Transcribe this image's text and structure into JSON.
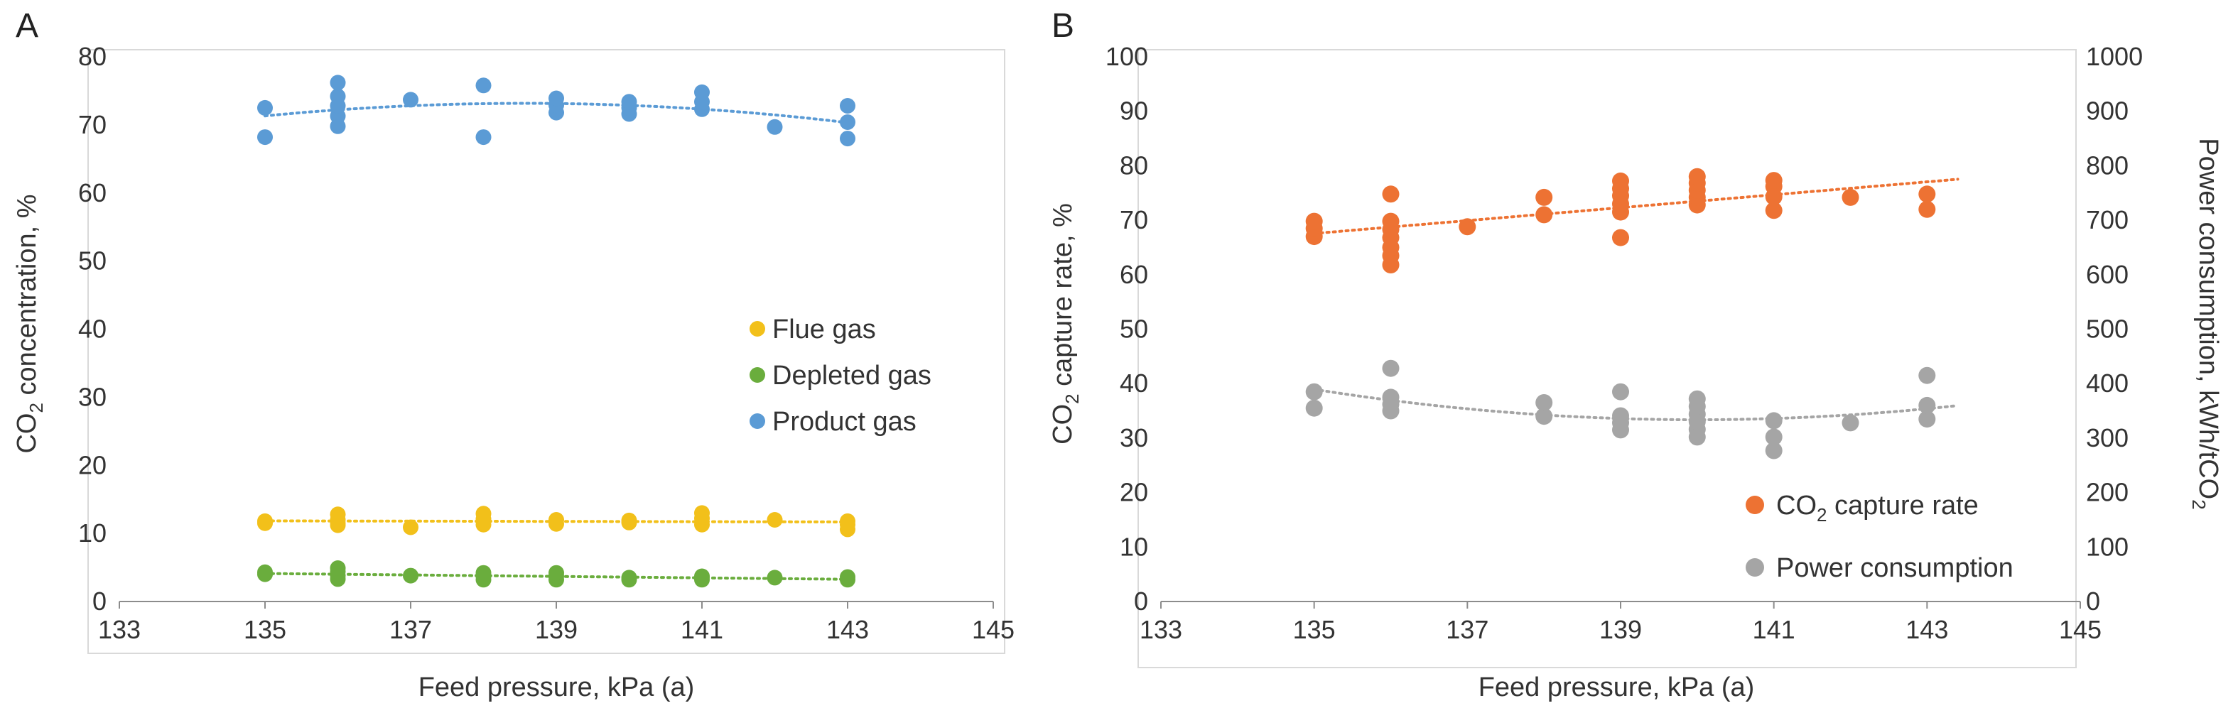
{
  "chart_data": [
    {
      "type": "scatter",
      "panel_label": "A",
      "xlabel": "Feed pressure, kPa (a)",
      "ylabel": "CO2 concentration, %",
      "xlim": [
        133,
        145
      ],
      "ylim": [
        0,
        80
      ],
      "xticks": [
        "133",
        "135",
        "137",
        "139",
        "141",
        "143",
        "145"
      ],
      "yticks": [
        "0",
        "10",
        "20",
        "30",
        "40",
        "50",
        "60",
        "70",
        "80"
      ],
      "legend_position": "center-right",
      "series": [
        {
          "name": "Flue gas",
          "color": "#f2c01a",
          "trend": "linear",
          "points": [
            [
              135,
              11.5
            ],
            [
              135,
              11.8
            ],
            [
              136,
              11.2
            ],
            [
              136,
              12.0
            ],
            [
              136,
              12.8
            ],
            [
              136,
              11.5
            ],
            [
              137,
              10.9
            ],
            [
              138,
              11.3
            ],
            [
              138,
              12.1
            ],
            [
              138,
              12.9
            ],
            [
              139,
              11.4
            ],
            [
              139,
              12.0
            ],
            [
              140,
              11.6
            ],
            [
              140,
              11.9
            ],
            [
              141,
              11.3
            ],
            [
              141,
              12.2
            ],
            [
              141,
              13.0
            ],
            [
              142,
              12.0
            ],
            [
              143,
              10.6
            ],
            [
              143,
              11.3
            ],
            [
              143,
              11.8
            ]
          ]
        },
        {
          "name": "Depleted gas",
          "color": "#6aad3d",
          "trend": "linear",
          "points": [
            [
              135,
              4.0
            ],
            [
              135,
              4.3
            ],
            [
              136,
              3.3
            ],
            [
              136,
              3.8
            ],
            [
              136,
              4.4
            ],
            [
              136,
              4.9
            ],
            [
              137,
              3.8
            ],
            [
              138,
              3.2
            ],
            [
              138,
              3.7
            ],
            [
              138,
              4.2
            ],
            [
              139,
              3.2
            ],
            [
              139,
              3.7
            ],
            [
              139,
              4.2
            ],
            [
              140,
              3.2
            ],
            [
              140,
              3.5
            ],
            [
              141,
              3.2
            ],
            [
              141,
              3.7
            ],
            [
              142,
              3.5
            ],
            [
              143,
              3.2
            ],
            [
              143,
              3.6
            ]
          ]
        },
        {
          "name": "Product gas",
          "color": "#5b9bd5",
          "trend": "polynomial",
          "points": [
            [
              135,
              68.2
            ],
            [
              135,
              72.5
            ],
            [
              136,
              69.8
            ],
            [
              136,
              71.3
            ],
            [
              136,
              72.8
            ],
            [
              136,
              74.2
            ],
            [
              136,
              76.2
            ],
            [
              137,
              73.7
            ],
            [
              138,
              68.2
            ],
            [
              138,
              75.8
            ],
            [
              139,
              71.8
            ],
            [
              139,
              72.9
            ],
            [
              139,
              73.9
            ],
            [
              140,
              71.6
            ],
            [
              140,
              72.5
            ],
            [
              140,
              73.4
            ],
            [
              141,
              72.3
            ],
            [
              141,
              73.4
            ],
            [
              141,
              74.8
            ],
            [
              142,
              69.7
            ],
            [
              143,
              68.0
            ],
            [
              143,
              70.4
            ],
            [
              143,
              72.8
            ]
          ]
        }
      ]
    },
    {
      "type": "scatter",
      "panel_label": "B",
      "xlabel": "Feed pressure, kPa (a)",
      "ylabel": "CO2 capture rate, %",
      "y2label": "Power consumption, kWh/tCO2",
      "xlim": [
        133,
        145
      ],
      "ylim": [
        0,
        100
      ],
      "y2lim": [
        0,
        1000
      ],
      "xticks": [
        "133",
        "135",
        "137",
        "139",
        "141",
        "143",
        "145"
      ],
      "yticks": [
        "0",
        "10",
        "20",
        "30",
        "40",
        "50",
        "60",
        "70",
        "80",
        "90",
        "100"
      ],
      "y2ticks": [
        "0",
        "100",
        "200",
        "300",
        "400",
        "500",
        "600",
        "700",
        "800",
        "900",
        "1000"
      ],
      "legend_position": "bottom-right",
      "series": [
        {
          "name": "CO2 capture rate",
          "axis": "left",
          "color": "#ed7233",
          "trend": "linear",
          "points": [
            [
              135,
              67.0
            ],
            [
              135,
              68.5
            ],
            [
              135,
              69.8
            ],
            [
              136,
              61.8
            ],
            [
              136,
              63.5
            ],
            [
              136,
              65.0
            ],
            [
              136,
              66.8
            ],
            [
              136,
              68.3
            ],
            [
              136,
              69.8
            ],
            [
              136,
              74.8
            ],
            [
              137,
              68.8
            ],
            [
              138,
              71.0
            ],
            [
              138,
              74.2
            ],
            [
              139,
              66.8
            ],
            [
              139,
              71.5
            ],
            [
              139,
              73.0
            ],
            [
              139,
              74.5
            ],
            [
              139,
              75.8
            ],
            [
              139,
              77.2
            ],
            [
              140,
              72.8
            ],
            [
              140,
              74.2
            ],
            [
              140,
              75.5
            ],
            [
              140,
              76.8
            ],
            [
              140,
              78.0
            ],
            [
              141,
              71.8
            ],
            [
              141,
              74.3
            ],
            [
              141,
              76.2
            ],
            [
              141,
              77.3
            ],
            [
              142,
              74.2
            ],
            [
              143,
              72.0
            ],
            [
              143,
              74.8
            ]
          ]
        },
        {
          "name": "Power consumption",
          "axis": "right",
          "color": "#a5a5a5",
          "trend": "polynomial",
          "points": [
            [
              135,
              355
            ],
            [
              135,
              385
            ],
            [
              136,
              350
            ],
            [
              136,
              362
            ],
            [
              136,
              375
            ],
            [
              136,
              428
            ],
            [
              138,
              340
            ],
            [
              138,
              365
            ],
            [
              139,
              315
            ],
            [
              139,
              328
            ],
            [
              139,
              341
            ],
            [
              139,
              385
            ],
            [
              140,
              302
            ],
            [
              140,
              316
            ],
            [
              140,
              330
            ],
            [
              140,
              344
            ],
            [
              140,
              358
            ],
            [
              140,
              372
            ],
            [
              141,
              277
            ],
            [
              141,
              302
            ],
            [
              141,
              332
            ],
            [
              142,
              328
            ],
            [
              143,
              335
            ],
            [
              143,
              360
            ],
            [
              143,
              415
            ]
          ]
        }
      ]
    }
  ],
  "panels": {
    "a": {
      "letter": "A",
      "ylabel_pre": "CO",
      "ylabel_sub": "2",
      "ylabel_post": " concentration, %",
      "xlabel": "Feed pressure, kPa (a)",
      "legend": [
        "Flue gas",
        "Depleted gas",
        "Product gas"
      ]
    },
    "b": {
      "letter": "B",
      "ylabel_pre": "CO",
      "ylabel_sub": "2",
      "ylabel_post": " capture rate, %",
      "y2label_pre": "Power consumption, kWh/tCO",
      "y2label_sub": "2",
      "xlabel": "Feed pressure, kPa (a)",
      "legend1_pre": "CO",
      "legend1_sub": "2",
      "legend1_post": " capture rate",
      "legend2": "Power consumption"
    }
  }
}
